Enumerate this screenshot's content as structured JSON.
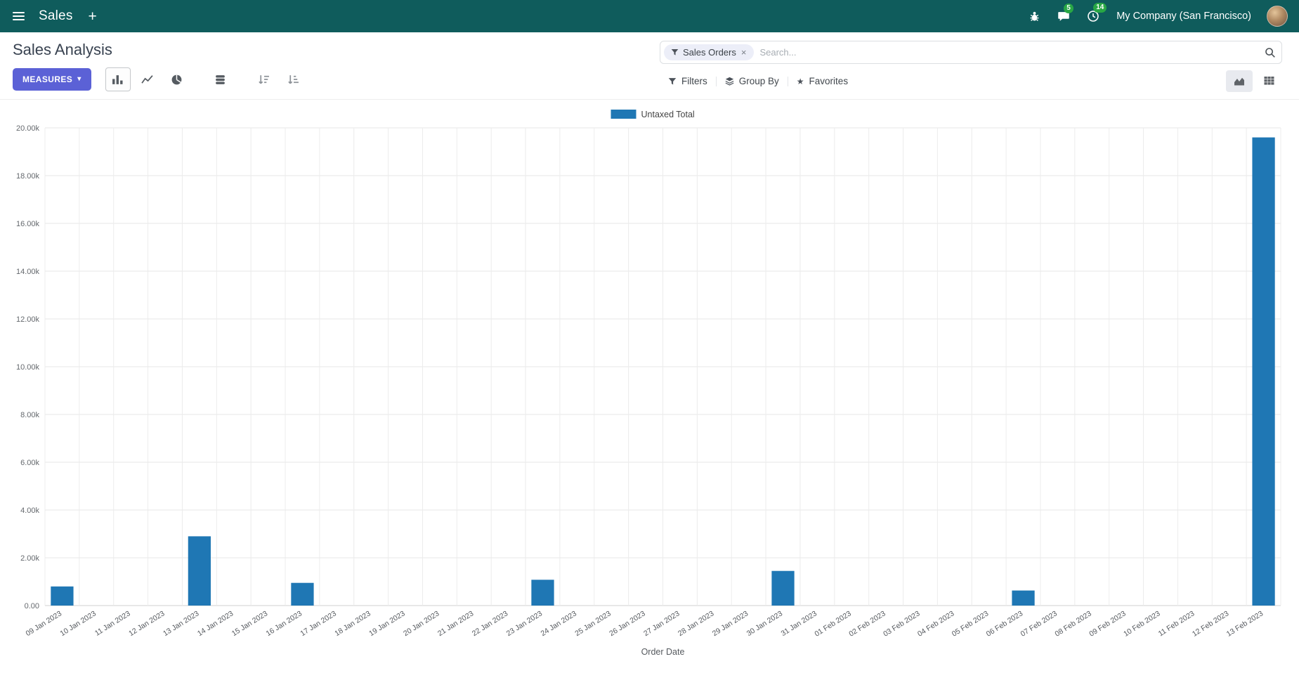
{
  "navbar": {
    "app_name": "Sales",
    "messages_badge": "5",
    "activities_badge": "14",
    "company": "My Company (San Francisco)"
  },
  "control_panel": {
    "title": "Sales Analysis",
    "measures_label": "MEASURES",
    "filters_label": "Filters",
    "group_by_label": "Group By",
    "favorites_label": "Favorites",
    "search": {
      "facet": "Sales Orders",
      "placeholder": "Search..."
    }
  },
  "icons": {
    "plus": "+",
    "caret_down": "▾",
    "close": "×",
    "star": "★"
  },
  "colors": {
    "navbar-bg": "#0f5c5c",
    "accent": "#5b61d6",
    "bar-color": "#1f77b4",
    "badge-bg": "#28a745"
  },
  "chart_data": {
    "type": "bar",
    "title": "",
    "xlabel": "Order Date",
    "ylabel": "",
    "ylim": [
      0,
      20000
    ],
    "grid": true,
    "legend_position": "top-center",
    "y_ticks": [
      "0.00",
      "2.00k",
      "4.00k",
      "6.00k",
      "8.00k",
      "10.00k",
      "12.00k",
      "14.00k",
      "16.00k",
      "18.00k",
      "20.00k"
    ],
    "categories": [
      "09 Jan 2023",
      "10 Jan 2023",
      "11 Jan 2023",
      "12 Jan 2023",
      "13 Jan 2023",
      "14 Jan 2023",
      "15 Jan 2023",
      "16 Jan 2023",
      "17 Jan 2023",
      "18 Jan 2023",
      "19 Jan 2023",
      "20 Jan 2023",
      "21 Jan 2023",
      "22 Jan 2023",
      "23 Jan 2023",
      "24 Jan 2023",
      "25 Jan 2023",
      "26 Jan 2023",
      "27 Jan 2023",
      "28 Jan 2023",
      "29 Jan 2023",
      "30 Jan 2023",
      "31 Jan 2023",
      "01 Feb 2023",
      "02 Feb 2023",
      "03 Feb 2023",
      "04 Feb 2023",
      "05 Feb 2023",
      "06 Feb 2023",
      "07 Feb 2023",
      "08 Feb 2023",
      "09 Feb 2023",
      "10 Feb 2023",
      "11 Feb 2023",
      "12 Feb 2023",
      "13 Feb 2023"
    ],
    "series": [
      {
        "name": "Untaxed Total",
        "color": "#1f77b4",
        "values": [
          800,
          0,
          0,
          0,
          2900,
          0,
          0,
          950,
          0,
          0,
          0,
          0,
          0,
          0,
          1080,
          0,
          0,
          0,
          0,
          0,
          0,
          1450,
          0,
          0,
          0,
          0,
          0,
          0,
          630,
          0,
          0,
          0,
          0,
          0,
          0,
          19600
        ]
      }
    ]
  }
}
